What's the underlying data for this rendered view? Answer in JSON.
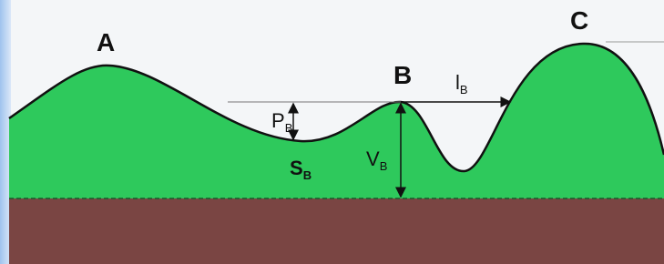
{
  "peaks": [
    {
      "label": "A"
    },
    {
      "label": "B"
    },
    {
      "label": "C"
    }
  ],
  "measures": [
    {
      "symbol": "P",
      "subscript": "B"
    },
    {
      "symbol": "S",
      "subscript": "B"
    },
    {
      "symbol": "V",
      "subscript": "B"
    },
    {
      "symbol": "l",
      "subscript": "B"
    }
  ]
}
